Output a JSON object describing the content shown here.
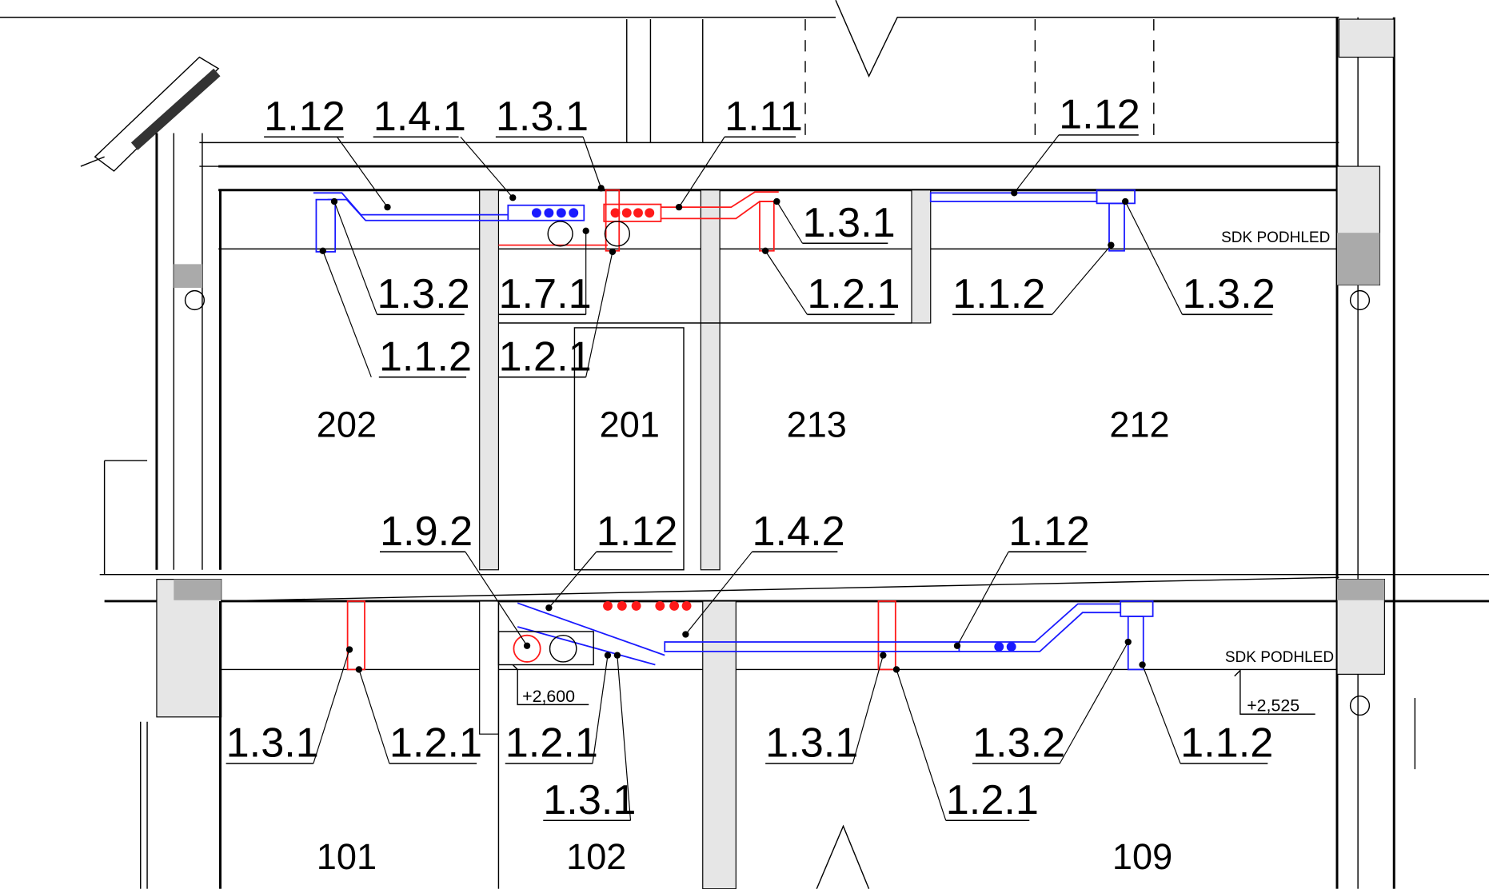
{
  "labels": [
    "1.12",
    "1.4.1",
    "1.3.1",
    "1.11",
    "1.12",
    "1.3.1",
    "1.3.2",
    "1.7.1",
    "1.2.1",
    "1.1.2",
    "1.3.2",
    "1.1.2",
    "1.2.1",
    "1.9.2",
    "1.12",
    "1.4.2",
    "1.12",
    "1.3.1",
    "1.2.1",
    "1.2.1",
    "1.3.1",
    "1.3.2",
    "1.1.2",
    "1.3.1",
    "1.2.1"
  ],
  "rooms": [
    "202",
    "201",
    "213",
    "212",
    "101",
    "102",
    "109"
  ],
  "notes": [
    "SDK PODHLED",
    "SDK PODHLED"
  ],
  "levels": [
    "+2,600",
    "+2,525"
  ]
}
